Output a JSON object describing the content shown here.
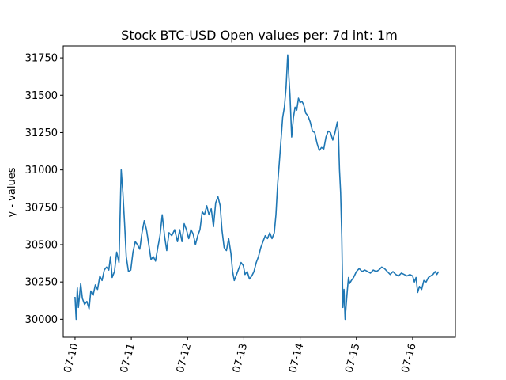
{
  "chart_data": {
    "type": "line",
    "title": "Stock BTC-USD Open values per: 7d int: 1m",
    "xlabel": "",
    "ylabel": "y - values",
    "ylim": [
      29880,
      31830
    ],
    "xlim": [
      -0.21,
      6.76
    ],
    "grid": false,
    "legend": "none",
    "color": "#1f77b4",
    "x_tick_labels": [
      "07-10",
      "07-11",
      "07-12",
      "07-13",
      "07-14",
      "07-15",
      "07-16"
    ],
    "y_tick_values": [
      30000,
      30250,
      30500,
      30750,
      31000,
      31250,
      31500,
      31750
    ],
    "y_tick_labels": [
      "30000",
      "30250",
      "30500",
      "30750",
      "31000",
      "31250",
      "31500",
      "31750"
    ],
    "series": [
      {
        "x_unit": "days since 07-10",
        "points": [
          [
            0.0,
            30150
          ],
          [
            0.02,
            30000
          ],
          [
            0.04,
            30210
          ],
          [
            0.06,
            30080
          ],
          [
            0.1,
            30240
          ],
          [
            0.13,
            30140
          ],
          [
            0.17,
            30100
          ],
          [
            0.21,
            30120
          ],
          [
            0.25,
            30070
          ],
          [
            0.28,
            30190
          ],
          [
            0.32,
            30160
          ],
          [
            0.36,
            30230
          ],
          [
            0.4,
            30200
          ],
          [
            0.44,
            30290
          ],
          [
            0.48,
            30260
          ],
          [
            0.52,
            30330
          ],
          [
            0.56,
            30350
          ],
          [
            0.6,
            30330
          ],
          [
            0.63,
            30420
          ],
          [
            0.66,
            30280
          ],
          [
            0.7,
            30320
          ],
          [
            0.74,
            30450
          ],
          [
            0.78,
            30380
          ],
          [
            0.82,
            31000
          ],
          [
            0.85,
            30850
          ],
          [
            0.88,
            30640
          ],
          [
            0.91,
            30420
          ],
          [
            0.95,
            30320
          ],
          [
            0.99,
            30330
          ],
          [
            1.03,
            30450
          ],
          [
            1.07,
            30520
          ],
          [
            1.11,
            30500
          ],
          [
            1.15,
            30470
          ],
          [
            1.19,
            30580
          ],
          [
            1.23,
            30660
          ],
          [
            1.27,
            30600
          ],
          [
            1.31,
            30500
          ],
          [
            1.35,
            30400
          ],
          [
            1.39,
            30420
          ],
          [
            1.43,
            30390
          ],
          [
            1.47,
            30480
          ],
          [
            1.51,
            30560
          ],
          [
            1.55,
            30700
          ],
          [
            1.59,
            30560
          ],
          [
            1.63,
            30460
          ],
          [
            1.67,
            30580
          ],
          [
            1.72,
            30560
          ],
          [
            1.77,
            30600
          ],
          [
            1.82,
            30520
          ],
          [
            1.86,
            30600
          ],
          [
            1.9,
            30520
          ],
          [
            1.94,
            30640
          ],
          [
            1.98,
            30600
          ],
          [
            2.02,
            30540
          ],
          [
            2.06,
            30600
          ],
          [
            2.1,
            30570
          ],
          [
            2.14,
            30500
          ],
          [
            2.18,
            30560
          ],
          [
            2.22,
            30600
          ],
          [
            2.26,
            30720
          ],
          [
            2.3,
            30700
          ],
          [
            2.34,
            30760
          ],
          [
            2.38,
            30700
          ],
          [
            2.42,
            30740
          ],
          [
            2.46,
            30620
          ],
          [
            2.5,
            30780
          ],
          [
            2.54,
            30820
          ],
          [
            2.58,
            30760
          ],
          [
            2.61,
            30600
          ],
          [
            2.65,
            30480
          ],
          [
            2.69,
            30460
          ],
          [
            2.73,
            30540
          ],
          [
            2.77,
            30440
          ],
          [
            2.8,
            30320
          ],
          [
            2.83,
            30260
          ],
          [
            2.87,
            30300
          ],
          [
            2.91,
            30340
          ],
          [
            2.95,
            30380
          ],
          [
            2.99,
            30360
          ],
          [
            3.02,
            30300
          ],
          [
            3.06,
            30320
          ],
          [
            3.1,
            30270
          ],
          [
            3.14,
            30290
          ],
          [
            3.18,
            30320
          ],
          [
            3.22,
            30380
          ],
          [
            3.26,
            30420
          ],
          [
            3.3,
            30480
          ],
          [
            3.34,
            30520
          ],
          [
            3.38,
            30560
          ],
          [
            3.42,
            30540
          ],
          [
            3.46,
            30580
          ],
          [
            3.5,
            30540
          ],
          [
            3.54,
            30580
          ],
          [
            3.57,
            30700
          ],
          [
            3.6,
            30900
          ],
          [
            3.63,
            31050
          ],
          [
            3.66,
            31200
          ],
          [
            3.69,
            31350
          ],
          [
            3.72,
            31420
          ],
          [
            3.75,
            31550
          ],
          [
            3.78,
            31770
          ],
          [
            3.8,
            31620
          ],
          [
            3.82,
            31500
          ],
          [
            3.85,
            31220
          ],
          [
            3.88,
            31350
          ],
          [
            3.91,
            31420
          ],
          [
            3.94,
            31400
          ],
          [
            3.97,
            31480
          ],
          [
            4.0,
            31450
          ],
          [
            4.03,
            31460
          ],
          [
            4.06,
            31440
          ],
          [
            4.1,
            31380
          ],
          [
            4.14,
            31360
          ],
          [
            4.18,
            31320
          ],
          [
            4.22,
            31260
          ],
          [
            4.26,
            31250
          ],
          [
            4.3,
            31180
          ],
          [
            4.34,
            31130
          ],
          [
            4.38,
            31150
          ],
          [
            4.42,
            31140
          ],
          [
            4.46,
            31220
          ],
          [
            4.5,
            31260
          ],
          [
            4.54,
            31250
          ],
          [
            4.58,
            31200
          ],
          [
            4.62,
            31250
          ],
          [
            4.66,
            31320
          ],
          [
            4.68,
            31250
          ],
          [
            4.7,
            31000
          ],
          [
            4.72,
            30850
          ],
          [
            4.74,
            30550
          ],
          [
            4.76,
            30080
          ],
          [
            4.78,
            30200
          ],
          [
            4.8,
            30000
          ],
          [
            4.82,
            30100
          ],
          [
            4.84,
            30200
          ],
          [
            4.86,
            30280
          ],
          [
            4.88,
            30240
          ],
          [
            4.91,
            30260
          ],
          [
            4.95,
            30280
          ],
          [
            5.0,
            30320
          ],
          [
            5.05,
            30340
          ],
          [
            5.1,
            30320
          ],
          [
            5.15,
            30330
          ],
          [
            5.2,
            30320
          ],
          [
            5.25,
            30310
          ],
          [
            5.3,
            30330
          ],
          [
            5.35,
            30320
          ],
          [
            5.4,
            30330
          ],
          [
            5.45,
            30350
          ],
          [
            5.5,
            30340
          ],
          [
            5.55,
            30320
          ],
          [
            5.6,
            30300
          ],
          [
            5.65,
            30320
          ],
          [
            5.7,
            30300
          ],
          [
            5.75,
            30290
          ],
          [
            5.8,
            30310
          ],
          [
            5.85,
            30300
          ],
          [
            5.9,
            30290
          ],
          [
            5.95,
            30300
          ],
          [
            6.0,
            30290
          ],
          [
            6.03,
            30250
          ],
          [
            6.06,
            30280
          ],
          [
            6.09,
            30180
          ],
          [
            6.12,
            30220
          ],
          [
            6.16,
            30200
          ],
          [
            6.2,
            30260
          ],
          [
            6.24,
            30250
          ],
          [
            6.28,
            30280
          ],
          [
            6.32,
            30290
          ],
          [
            6.36,
            30300
          ],
          [
            6.4,
            30320
          ],
          [
            6.43,
            30300
          ],
          [
            6.46,
            30320
          ]
        ]
      }
    ]
  }
}
